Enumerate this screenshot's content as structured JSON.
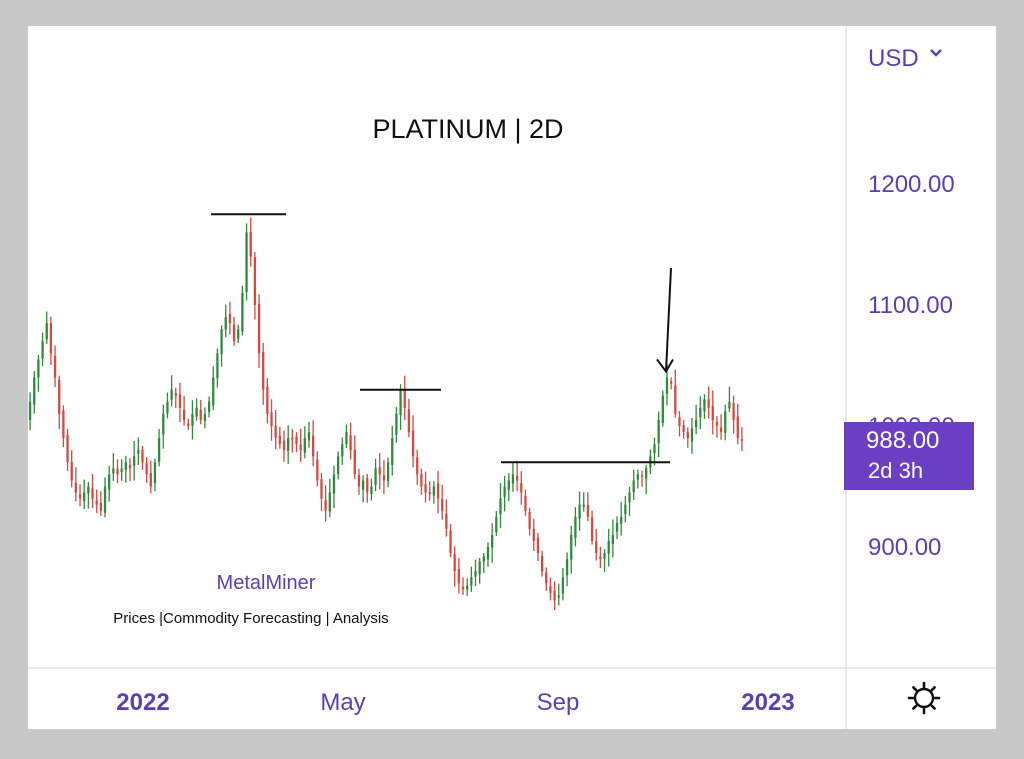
{
  "currency_selector": {
    "label": "USD",
    "icon": "chevron-down-icon"
  },
  "settings_icon": "gear-icon",
  "price_tag": {
    "price": "988.00",
    "interval": "2d 3h",
    "color": "#6a3fc4"
  },
  "watermark": {
    "brand": "MetalMiner",
    "tagline": "Prices |Commodity Forecasting | Analysis"
  },
  "colors": {
    "up": "#2e8b3a",
    "down": "#d9473f",
    "accent": "#5a3fb6"
  },
  "chart_data": {
    "type": "candlestick",
    "title": "PLATINUM | 2D",
    "y_axis": {
      "ticks": [
        900,
        1000,
        1100,
        1200
      ],
      "tick_labels": [
        "900.00",
        "1000.00",
        "1100.00",
        "1200.00"
      ],
      "ylim": [
        845,
        1245
      ],
      "position": "right"
    },
    "x_axis": {
      "tick_labels": [
        "2022",
        "May",
        "Sep",
        "2023"
      ],
      "bold_labels": [
        "2022",
        "2023"
      ]
    },
    "grid": false,
    "last_price": 988,
    "closes": [
      1020,
      1040,
      1055,
      1070,
      1085,
      1060,
      1040,
      1010,
      990,
      970,
      955,
      945,
      940,
      945,
      950,
      940,
      935,
      930,
      950,
      960,
      965,
      960,
      965,
      970,
      965,
      975,
      980,
      970,
      960,
      950,
      970,
      990,
      1010,
      1020,
      1030,
      1025,
      1015,
      1005,
      1000,
      1010,
      1015,
      1005,
      1010,
      1020,
      1040,
      1060,
      1080,
      1090,
      1085,
      1070,
      1080,
      1110,
      1160,
      1140,
      1100,
      1060,
      1030,
      1010,
      1000,
      990,
      985,
      980,
      990,
      990,
      985,
      980,
      990,
      995,
      975,
      955,
      940,
      930,
      945,
      960,
      975,
      985,
      995,
      980,
      960,
      950,
      955,
      945,
      950,
      965,
      960,
      955,
      970,
      990,
      1010,
      1030,
      1015,
      995,
      975,
      960,
      950,
      945,
      945,
      950,
      940,
      930,
      915,
      895,
      880,
      870,
      865,
      868,
      875,
      880,
      888,
      892,
      900,
      910,
      925,
      940,
      950,
      955,
      960,
      955,
      945,
      930,
      915,
      905,
      895,
      880,
      870,
      862,
      856,
      860,
      875,
      890,
      910,
      925,
      935,
      935,
      925,
      905,
      895,
      890,
      895,
      905,
      910,
      920,
      925,
      935,
      945,
      955,
      960,
      958,
      965,
      975,
      985,
      1005,
      1025,
      1040,
      1035,
      1010,
      1000,
      995,
      990,
      998,
      1005,
      1015,
      1022,
      1015,
      1005,
      1000,
      995,
      1012,
      1020,
      1005,
      990,
      988
    ],
    "annotations": [
      {
        "type": "resistance",
        "price": 1175
      },
      {
        "type": "resistance",
        "price": 1030
      },
      {
        "type": "neckline",
        "price": 970
      },
      {
        "type": "arrow",
        "price": 1055
      }
    ]
  }
}
